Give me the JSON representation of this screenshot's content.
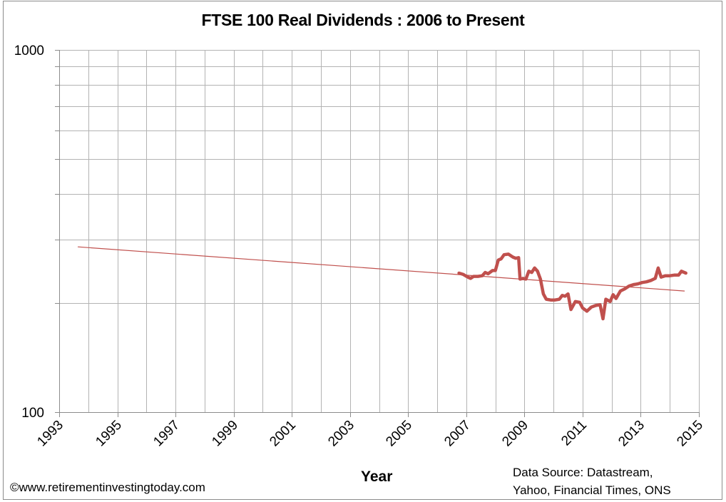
{
  "chart_data": {
    "type": "line",
    "title": "FTSE 100 Real Dividends : 2006 to Present",
    "xlabel": "Year",
    "ylabel": "",
    "yscale": "log",
    "xlim": [
      1993,
      2015
    ],
    "ylim": [
      100,
      1000
    ],
    "x_ticks": [
      "1993",
      "1995",
      "1997",
      "1999",
      "2001",
      "2003",
      "2005",
      "2007",
      "2009",
      "2011",
      "2013",
      "2015"
    ],
    "y_ticks": [
      "100",
      "1000"
    ],
    "y_minor_gridlines": [
      200,
      300,
      400,
      500,
      600,
      700,
      800,
      900
    ],
    "grid": true,
    "legend": "none",
    "series": [
      {
        "name": "FTSE 100 Real Dividends",
        "color": "#C0504D",
        "style": "thick",
        "points": [
          [
            2006.75,
            242
          ],
          [
            2006.9,
            240
          ],
          [
            2007.05,
            236
          ],
          [
            2007.15,
            234
          ],
          [
            2007.25,
            237
          ],
          [
            2007.4,
            237
          ],
          [
            2007.55,
            238
          ],
          [
            2007.65,
            243
          ],
          [
            2007.75,
            241
          ],
          [
            2007.9,
            246
          ],
          [
            2008.0,
            246
          ],
          [
            2008.1,
            263
          ],
          [
            2008.2,
            265
          ],
          [
            2008.3,
            272
          ],
          [
            2008.45,
            273
          ],
          [
            2008.6,
            268
          ],
          [
            2008.7,
            266
          ],
          [
            2008.8,
            267
          ],
          [
            2008.85,
            233
          ],
          [
            2008.95,
            234
          ],
          [
            2009.05,
            233
          ],
          [
            2009.15,
            245
          ],
          [
            2009.25,
            243
          ],
          [
            2009.35,
            250
          ],
          [
            2009.45,
            245
          ],
          [
            2009.55,
            233
          ],
          [
            2009.65,
            212
          ],
          [
            2009.75,
            205
          ],
          [
            2009.9,
            204
          ],
          [
            2010.05,
            204
          ],
          [
            2010.2,
            205
          ],
          [
            2010.3,
            210
          ],
          [
            2010.4,
            209
          ],
          [
            2010.5,
            212
          ],
          [
            2010.6,
            192
          ],
          [
            2010.75,
            202
          ],
          [
            2010.9,
            201
          ],
          [
            2011.0,
            194
          ],
          [
            2011.15,
            190
          ],
          [
            2011.3,
            195
          ],
          [
            2011.45,
            197
          ],
          [
            2011.6,
            198
          ],
          [
            2011.7,
            181
          ],
          [
            2011.8,
            205
          ],
          [
            2011.95,
            202
          ],
          [
            2012.05,
            211
          ],
          [
            2012.15,
            206
          ],
          [
            2012.3,
            216
          ],
          [
            2012.45,
            219
          ],
          [
            2012.6,
            223
          ],
          [
            2012.75,
            225
          ],
          [
            2012.9,
            226
          ],
          [
            2013.05,
            228
          ],
          [
            2013.2,
            229
          ],
          [
            2013.35,
            231
          ],
          [
            2013.5,
            234
          ],
          [
            2013.6,
            250
          ],
          [
            2013.7,
            236
          ],
          [
            2013.85,
            238
          ],
          [
            2014.0,
            238
          ],
          [
            2014.15,
            239
          ],
          [
            2014.3,
            239
          ],
          [
            2014.4,
            245
          ],
          [
            2014.55,
            242
          ]
        ]
      },
      {
        "name": "Trend",
        "color": "#C0504D",
        "style": "thin",
        "points": [
          [
            1993.65,
            286
          ],
          [
            2014.5,
            216
          ]
        ]
      }
    ],
    "annotations": [
      "©www.retirementinvestingtoday.com",
      "Data Source: Datastream, Yahoo, Financial Times, ONS"
    ]
  },
  "footer": {
    "copyright": "©www.retirementinvestingtoday.com",
    "source_line1": "Data Source: Datastream,",
    "source_line2": "Yahoo, Financial Times, ONS"
  }
}
